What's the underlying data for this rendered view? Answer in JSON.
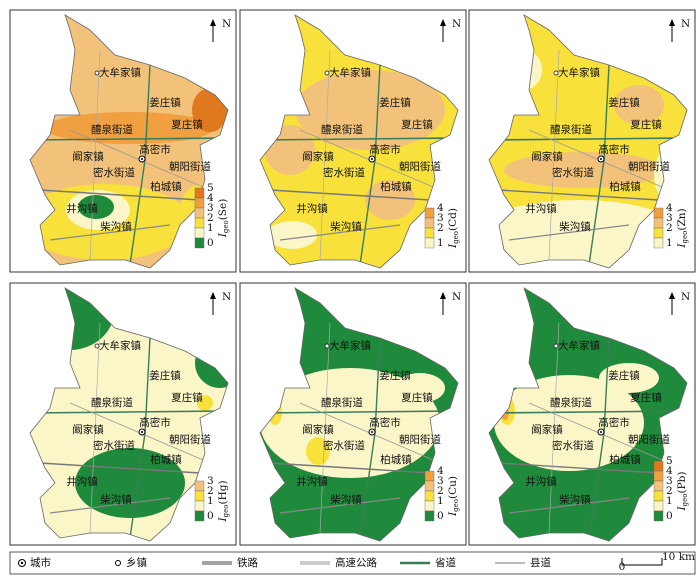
{
  "north": "N",
  "index_symbol": "I",
  "index_subscript": "geo",
  "places": [
    "大牟家镇",
    "姜庄镇",
    "夏庄镇",
    "醴泉街道",
    "高密市",
    "阚家镇",
    "朝阳街道",
    "密水街道",
    "柏城镇",
    "井沟镇",
    "柴沟镇"
  ],
  "panels": [
    {
      "element": "(Se)",
      "scale": [
        {
          "value": 5,
          "color": "#e0781e"
        },
        {
          "value": 4,
          "color": "#f0a040"
        },
        {
          "value": 3,
          "color": "#f2c27a"
        },
        {
          "value": 2,
          "color": "#f7e13a"
        },
        {
          "value": 1,
          "color": "#fbf6c8"
        },
        {
          "value": 0,
          "color": "#1f8a3c"
        }
      ]
    },
    {
      "element": "(Cd)",
      "scale": [
        {
          "value": 4,
          "color": "#f0a040"
        },
        {
          "value": 3,
          "color": "#f2c27a"
        },
        {
          "value": 2,
          "color": "#f7e13a"
        },
        {
          "value": 1,
          "color": "#fbf6c8"
        }
      ]
    },
    {
      "element": "(Zn)",
      "scale": [
        {
          "value": 4,
          "color": "#f0a040"
        },
        {
          "value": 3,
          "color": "#f2c27a"
        },
        {
          "value": 2,
          "color": "#f7e13a"
        },
        {
          "value": 1,
          "color": "#fbf6c8"
        }
      ]
    },
    {
      "element": "(Hg)",
      "scale": [
        {
          "value": 3,
          "color": "#f2c27a"
        },
        {
          "value": 2,
          "color": "#f7e13a"
        },
        {
          "value": 1,
          "color": "#fbf6c8"
        },
        {
          "value": 0,
          "color": "#1f8a3c"
        }
      ]
    },
    {
      "element": "(Cu)",
      "scale": [
        {
          "value": 4,
          "color": "#f0a040"
        },
        {
          "value": 3,
          "color": "#f2c27a"
        },
        {
          "value": 2,
          "color": "#f7e13a"
        },
        {
          "value": 1,
          "color": "#fbf6c8"
        },
        {
          "value": 0,
          "color": "#1f8a3c"
        }
      ]
    },
    {
      "element": "(Pb)",
      "scale": [
        {
          "value": 5,
          "color": "#e0781e"
        },
        {
          "value": 4,
          "color": "#f0a040"
        },
        {
          "value": 3,
          "color": "#f2c27a"
        },
        {
          "value": 2,
          "color": "#f7e13a"
        },
        {
          "value": 1,
          "color": "#fbf6c8"
        },
        {
          "value": 0,
          "color": "#1f8a3c"
        }
      ]
    }
  ],
  "legend": [
    "城市",
    "乡镇",
    "铁路",
    "高速公路",
    "省道",
    "县道"
  ],
  "scale_bar": {
    "start": 0,
    "end": "10 km"
  }
}
